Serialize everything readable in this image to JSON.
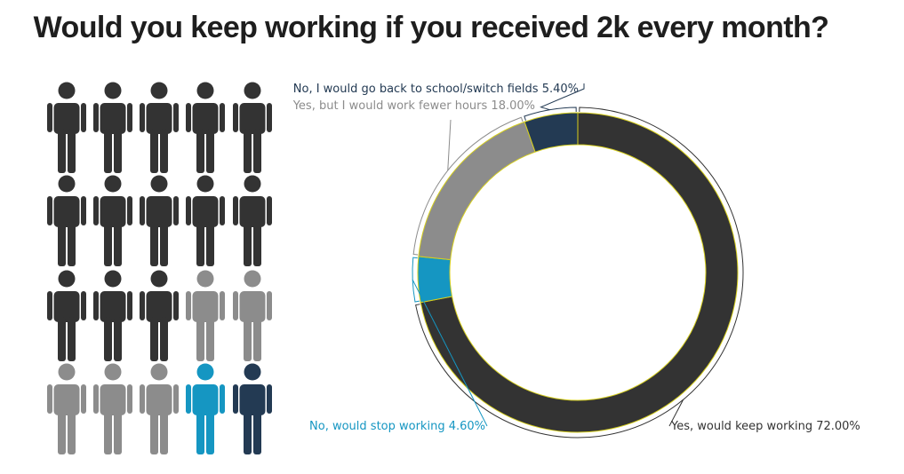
{
  "title": "Would you keep working if you received 2k every month?",
  "colors": {
    "keep": "#333333",
    "fewer_hours": "#8c8c8c",
    "school": "#233a53",
    "stop": "#1596c2",
    "ring_stroke": "#d6cf1e"
  },
  "chart_data": {
    "type": "pie",
    "title": "Would you keep working if you received 2k every month?",
    "hole": 0.8,
    "slices": [
      {
        "label": "Yes, would keep working",
        "value": 72.0,
        "value_text": "72.00%",
        "color": "#333333"
      },
      {
        "label": "No, would stop working",
        "value": 4.6,
        "value_text": "4.60%",
        "color": "#1596c2"
      },
      {
        "label": "Yes, but I would work fewer hours",
        "value": 18.0,
        "value_text": "18.00%",
        "color": "#8c8c8c"
      },
      {
        "label": "No, I would go back to school/switch fields",
        "value": 5.4,
        "value_text": "5.40%",
        "color": "#233a53"
      }
    ]
  },
  "pictogram": {
    "icon": "person-icon",
    "rows": [
      [
        "keep",
        "keep",
        "keep",
        "keep",
        "keep"
      ],
      [
        "keep",
        "keep",
        "keep",
        "keep",
        "keep"
      ],
      [
        "keep",
        "keep",
        "keep",
        "fewer_hours",
        "fewer_hours"
      ],
      [
        "fewer_hours",
        "fewer_hours",
        "fewer_hours",
        "stop",
        "school"
      ]
    ]
  }
}
